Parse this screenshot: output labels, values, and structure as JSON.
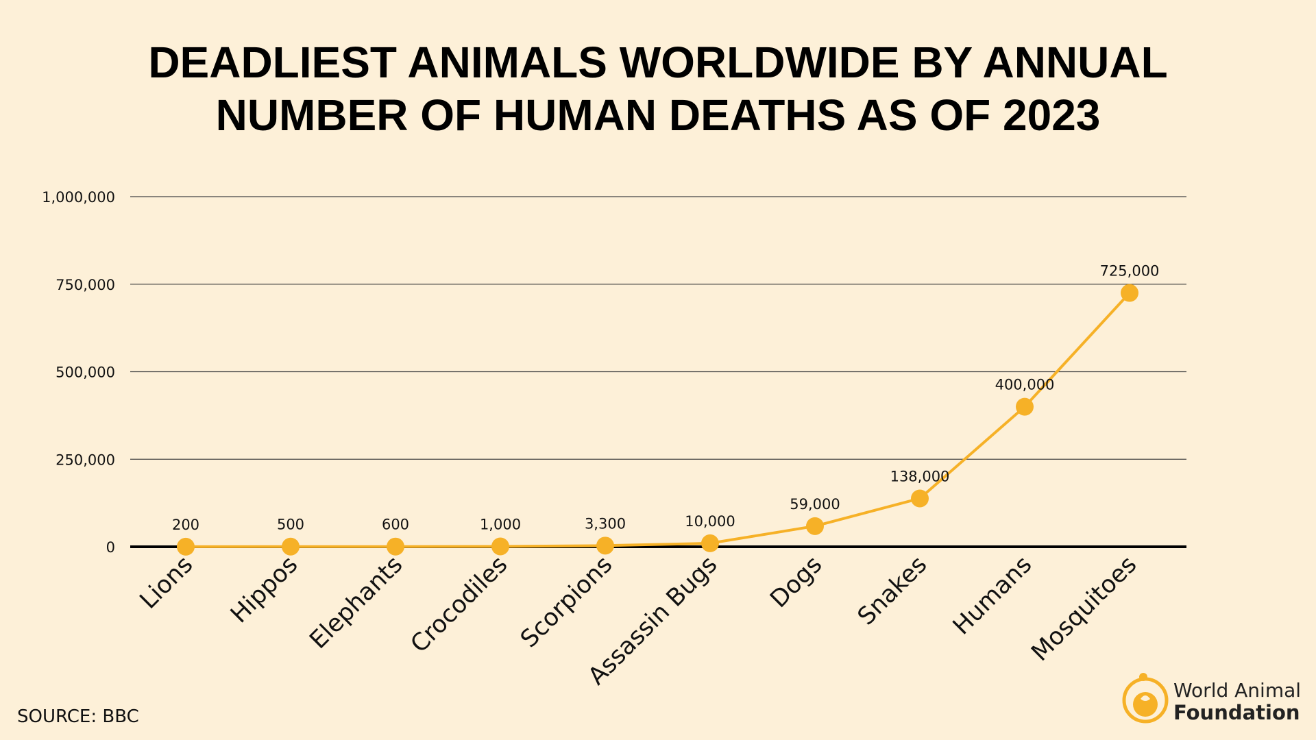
{
  "chart_data": {
    "type": "line",
    "title_lines": [
      "DEADLIEST ANIMALS WORLDWIDE BY ANNUAL",
      "NUMBER OF HUMAN DEATHS AS OF 2023"
    ],
    "categories": [
      "Lions",
      "Hippos",
      "Elephants",
      "Crocodiles",
      "Scorpions",
      "Assassin Bugs",
      "Dogs",
      "Snakes",
      "Humans",
      "Mosquitoes"
    ],
    "values": [
      200,
      500,
      600,
      1000,
      3300,
      10000,
      59000,
      138000,
      400000,
      725000
    ],
    "data_labels": [
      "200",
      "500",
      "600",
      "1,000",
      "3,300",
      "10,000",
      "59,000",
      "138,000",
      "400,000",
      "725,000"
    ],
    "ylim": [
      0,
      1000000
    ],
    "yticks": [
      0,
      250000,
      500000,
      750000,
      1000000
    ],
    "ytick_labels": [
      "0",
      "250,000",
      "500,000",
      "750,000",
      "1,000,000"
    ],
    "grid": true,
    "xlabel": "",
    "ylabel": "",
    "colors": {
      "line": "#f6b127",
      "background": "#fdf0d8",
      "grid": "#444444",
      "axis": "#000000"
    }
  },
  "footer": {
    "source": "SOURCE: BBC",
    "logo_line1": "World Animal",
    "logo_line2": "Foundation",
    "logo_icon": "animal-foundation-logo-icon"
  }
}
